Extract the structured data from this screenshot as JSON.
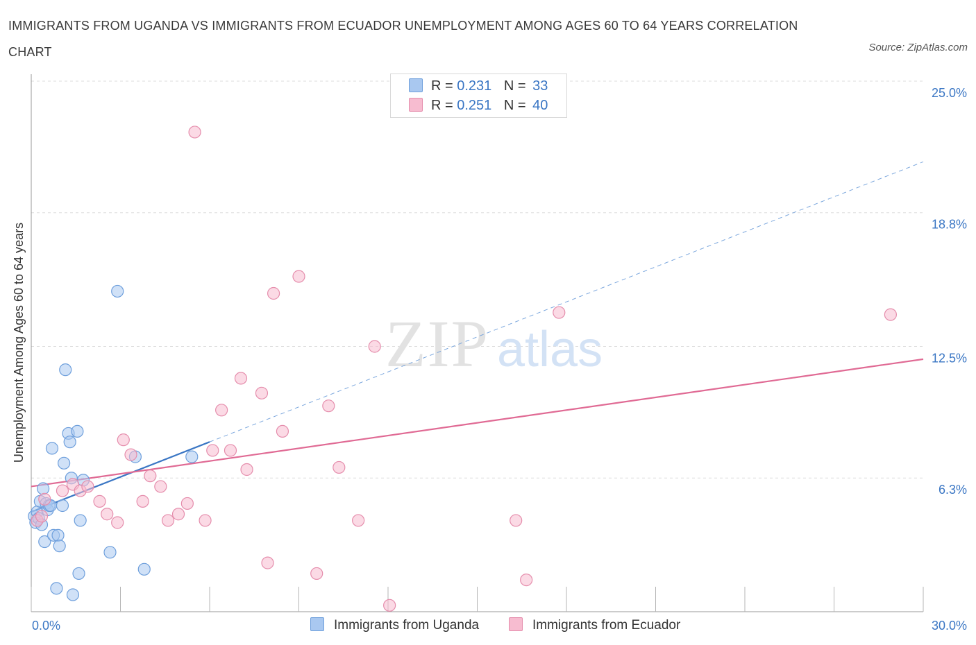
{
  "title": "IMMIGRANTS FROM UGANDA VS IMMIGRANTS FROM ECUADOR UNEMPLOYMENT AMONG AGES 60 TO 64 YEARS CORRELATION CHART",
  "source": "Source: ZipAtlas.com",
  "watermark": {
    "zip": "ZIP",
    "atlas": "atlas"
  },
  "legend_top": {
    "series1": {
      "r_label": "R =",
      "r_value": "0.231",
      "n_label": "N =",
      "n_value": "33"
    },
    "series2": {
      "r_label": "R =",
      "r_value": "0.251",
      "n_label": "N =",
      "n_value": "40"
    }
  },
  "colors": {
    "uganda_fill": "#a9c8f0",
    "uganda_stroke": "#6e9fdc",
    "uganda_line": "#3a76c4",
    "ecuador_fill": "#f7bcd0",
    "ecuador_stroke": "#e58dac",
    "ecuador_line": "#e06a94",
    "tick_label": "#3a76c4",
    "grid": "#dcdcdc",
    "axis": "#999999"
  },
  "chart_data": {
    "type": "scatter",
    "title": "IMMIGRANTS FROM UGANDA VS IMMIGRANTS FROM ECUADOR UNEMPLOYMENT AMONG AGES 60 TO 64 YEARS CORRELATION CHART",
    "xlabel": "",
    "ylabel": "Unemployment Among Ages 60 to 64 years",
    "xlim": [
      0,
      30
    ],
    "ylim": [
      0,
      25
    ],
    "x_tick_labels": [
      "0.0%",
      "30.0%"
    ],
    "y_ticks": [
      6.3,
      12.5,
      18.8,
      25.0
    ],
    "y_tick_labels": [
      "6.3%",
      "12.5%",
      "18.8%",
      "25.0%"
    ],
    "grid": true,
    "series": [
      {
        "name": "Immigrants from Uganda",
        "points": [
          [
            0.1,
            4.5
          ],
          [
            0.15,
            4.2
          ],
          [
            0.2,
            4.7
          ],
          [
            0.25,
            4.4
          ],
          [
            0.3,
            5.2
          ],
          [
            0.35,
            4.1
          ],
          [
            0.4,
            5.8
          ],
          [
            0.45,
            3.3
          ],
          [
            0.5,
            5.1
          ],
          [
            0.55,
            4.8
          ],
          [
            0.6,
            5.0
          ],
          [
            0.65,
            5.0
          ],
          [
            0.7,
            7.7
          ],
          [
            0.75,
            3.6
          ],
          [
            0.85,
            1.1
          ],
          [
            0.9,
            3.6
          ],
          [
            0.95,
            3.1
          ],
          [
            1.1,
            7.0
          ],
          [
            1.15,
            11.4
          ],
          [
            1.25,
            8.4
          ],
          [
            1.3,
            8.0
          ],
          [
            1.35,
            6.3
          ],
          [
            1.4,
            0.8
          ],
          [
            1.55,
            8.5
          ],
          [
            1.6,
            1.8
          ],
          [
            1.65,
            4.3
          ],
          [
            1.75,
            6.2
          ],
          [
            2.65,
            2.8
          ],
          [
            2.9,
            15.1
          ],
          [
            3.5,
            7.3
          ],
          [
            3.8,
            2.0
          ],
          [
            5.4,
            7.3
          ],
          [
            1.05,
            5.0
          ]
        ],
        "trend": {
          "x": [
            0.0,
            6.0
          ],
          "y": [
            4.7,
            8.0
          ]
        },
        "trend_extended": {
          "x": [
            6.0,
            30.0
          ],
          "y": [
            8.0,
            21.2
          ]
        }
      },
      {
        "name": "Immigrants from Ecuador",
        "points": [
          [
            0.2,
            4.3
          ],
          [
            0.35,
            4.5
          ],
          [
            0.45,
            5.3
          ],
          [
            1.05,
            5.7
          ],
          [
            1.4,
            6.0
          ],
          [
            1.65,
            5.7
          ],
          [
            1.9,
            5.9
          ],
          [
            2.3,
            5.2
          ],
          [
            2.55,
            4.6
          ],
          [
            2.9,
            4.2
          ],
          [
            3.1,
            8.1
          ],
          [
            3.35,
            7.4
          ],
          [
            3.75,
            5.2
          ],
          [
            4.0,
            6.4
          ],
          [
            4.35,
            5.9
          ],
          [
            4.6,
            4.3
          ],
          [
            4.95,
            4.6
          ],
          [
            5.25,
            5.1
          ],
          [
            5.5,
            22.6
          ],
          [
            5.85,
            4.3
          ],
          [
            6.1,
            7.6
          ],
          [
            6.4,
            9.5
          ],
          [
            6.7,
            7.6
          ],
          [
            7.05,
            11.0
          ],
          [
            7.25,
            6.7
          ],
          [
            7.75,
            10.3
          ],
          [
            7.95,
            2.3
          ],
          [
            8.15,
            15.0
          ],
          [
            8.45,
            8.5
          ],
          [
            9.0,
            15.8
          ],
          [
            9.6,
            1.8
          ],
          [
            10.0,
            9.7
          ],
          [
            10.35,
            6.8
          ],
          [
            11.0,
            4.3
          ],
          [
            11.55,
            12.5
          ],
          [
            12.05,
            0.3
          ],
          [
            16.3,
            4.3
          ],
          [
            16.65,
            1.5
          ],
          [
            17.75,
            14.1
          ],
          [
            28.9,
            14.0
          ]
        ],
        "trend": {
          "x": [
            0.0,
            30.0
          ],
          "y": [
            5.9,
            11.9
          ]
        }
      }
    ]
  },
  "bottom_legend": {
    "uganda": "Immigrants from Uganda",
    "ecuador": "Immigrants from Ecuador"
  }
}
